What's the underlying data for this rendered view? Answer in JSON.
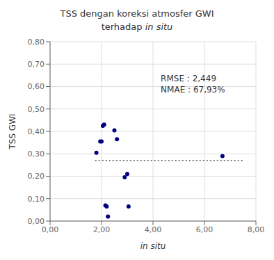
{
  "chart_data": {
    "type": "scatter",
    "title": "TSS dengan koreksi atmosfer GWI\nterhadap in situ",
    "xlabel": "in situ",
    "ylabel": "TSS GWI",
    "x": [
      1.8,
      1.95,
      2.0,
      2.05,
      2.1,
      2.15,
      2.2,
      2.25,
      2.5,
      2.6,
      2.9,
      3.0,
      3.05,
      6.7
    ],
    "values": [
      0.305,
      0.355,
      0.355,
      0.425,
      0.43,
      0.07,
      0.065,
      0.02,
      0.405,
      0.365,
      0.195,
      0.21,
      0.065,
      0.29
    ],
    "color": "#000080",
    "xlim": [
      0.0,
      8.0
    ],
    "ylim": [
      0.0,
      0.8
    ],
    "xticks": [
      {
        "value": 0.0,
        "label": "0,00"
      },
      {
        "value": 2.0,
        "label": "2,00"
      },
      {
        "value": 4.0,
        "label": "4,00"
      },
      {
        "value": 6.0,
        "label": "6,00"
      },
      {
        "value": 8.0,
        "label": "8,00"
      }
    ],
    "yticks": [
      {
        "value": 0.0,
        "label": "0,00"
      },
      {
        "value": 0.1,
        "label": "0,10"
      },
      {
        "value": 0.2,
        "label": "0,20"
      },
      {
        "value": 0.3,
        "label": "0,30"
      },
      {
        "value": 0.4,
        "label": "0,40"
      },
      {
        "value": 0.5,
        "label": "0,50"
      },
      {
        "value": 0.6,
        "label": "0,60"
      },
      {
        "value": 0.7,
        "label": "0,70"
      },
      {
        "value": 0.8,
        "label": "0,80"
      }
    ],
    "hlines": [
      {
        "y": 0.27,
        "xmin": 1.75,
        "xmax": 7.5,
        "line_style": "dotted"
      }
    ],
    "annotations": [
      {
        "text": "RMSE : 2,449\nNMAE : 67,93%",
        "x": 4.3,
        "y": 0.66
      }
    ],
    "grid": true
  }
}
